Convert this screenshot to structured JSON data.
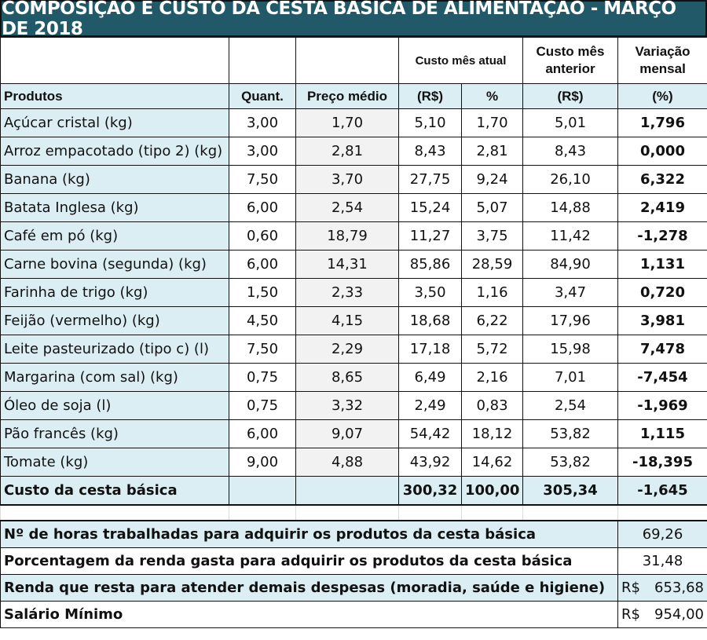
{
  "title": "COMPOSIÇÃO E CUSTO DA CESTA BÁSICA DE ALIMENTAÇÃO - MARÇO DE 2018",
  "header": {
    "custo_atual": "Custo mês atual",
    "custo_anterior": "Custo mês anterior",
    "variacao": "Variação mensal",
    "produtos": "Produtos",
    "quant": "Quant.",
    "preco": "Preço médio",
    "rs": "(R$)",
    "pct": "%",
    "rs_ant": "(R$)",
    "var_pct": "(%)"
  },
  "rows": [
    {
      "p": "Açúcar cristal (kg)",
      "q": "3,00",
      "pm": "1,70",
      "c": "5,10",
      "pc": "1,70",
      "a": "5,01",
      "v": "1,796"
    },
    {
      "p": "Arroz empacotado (tipo 2) (kg)",
      "q": "3,00",
      "pm": "2,81",
      "c": "8,43",
      "pc": "2,81",
      "a": "8,43",
      "v": "0,000"
    },
    {
      "p": "Banana (kg)",
      "q": "7,50",
      "pm": "3,70",
      "c": "27,75",
      "pc": "9,24",
      "a": "26,10",
      "v": "6,322"
    },
    {
      "p": "Batata Inglesa (kg)",
      "q": "6,00",
      "pm": "2,54",
      "c": "15,24",
      "pc": "5,07",
      "a": "14,88",
      "v": "2,419"
    },
    {
      "p": "Café em pó (kg)",
      "q": "0,60",
      "pm": "18,79",
      "c": "11,27",
      "pc": "3,75",
      "a": "11,42",
      "v": "-1,278"
    },
    {
      "p": "Carne bovina (segunda) (kg)",
      "q": "6,00",
      "pm": "14,31",
      "c": "85,86",
      "pc": "28,59",
      "a": "84,90",
      "v": "1,131"
    },
    {
      "p": "Farinha de trigo (kg)",
      "q": "1,50",
      "pm": "2,33",
      "c": "3,50",
      "pc": "1,16",
      "a": "3,47",
      "v": "0,720"
    },
    {
      "p": "Feijão (vermelho) (kg)",
      "q": "4,50",
      "pm": "4,15",
      "c": "18,68",
      "pc": "6,22",
      "a": "17,96",
      "v": "3,981"
    },
    {
      "p": "Leite pasteurizado (tipo c) (l)",
      "q": "7,50",
      "pm": "2,29",
      "c": "17,18",
      "pc": "5,72",
      "a": "15,98",
      "v": "7,478"
    },
    {
      "p": "Margarina (com sal) (kg)",
      "q": "0,75",
      "pm": "8,65",
      "c": "6,49",
      "pc": "2,16",
      "a": "7,01",
      "v": "-7,454"
    },
    {
      "p": "Óleo de soja (l)",
      "q": "0,75",
      "pm": "3,32",
      "c": "2,49",
      "pc": "0,83",
      "a": "2,54",
      "v": "-1,969"
    },
    {
      "p": "Pão francês (kg)",
      "q": "6,00",
      "pm": "9,07",
      "c": "54,42",
      "pc": "18,12",
      "a": "53,82",
      "v": "1,115"
    },
    {
      "p": "Tomate (kg)",
      "q": "9,00",
      "pm": "4,88",
      "c": "43,92",
      "pc": "14,62",
      "a": "53,82",
      "v": "-18,395"
    }
  ],
  "total": {
    "label": "Custo da cesta básica",
    "c": "300,32",
    "pc": "100,00",
    "a": "305,34",
    "v": "-1,645"
  },
  "summary": [
    {
      "label": "Nº de horas trabalhadas para adquirir os produtos da cesta básica",
      "cur": "",
      "val": "69,26"
    },
    {
      "label": "Porcentagem da renda gasta para adquirir os produtos da cesta básica",
      "cur": "",
      "val": "31,48"
    },
    {
      "label": "Renda que resta para atender demais despesas (moradia, saúde e higiene)",
      "cur": "R$",
      "val": "653,68"
    },
    {
      "label": "Salário Mínimo",
      "cur": "R$",
      "val": "954,00"
    }
  ]
}
